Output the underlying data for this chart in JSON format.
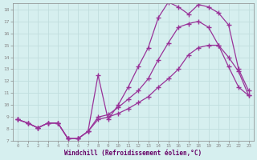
{
  "xlabel": "Windchill (Refroidissement éolien,°C)",
  "xlim": [
    0,
    23
  ],
  "ylim": [
    7,
    18.5
  ],
  "xticks": [
    0,
    1,
    2,
    3,
    4,
    5,
    6,
    7,
    8,
    9,
    10,
    11,
    12,
    13,
    14,
    15,
    16,
    17,
    18,
    19,
    20,
    21,
    22,
    23
  ],
  "yticks": [
    7,
    8,
    9,
    10,
    11,
    12,
    13,
    14,
    15,
    16,
    17,
    18
  ],
  "bg_color": "#d6efef",
  "grid_color": "#c0dede",
  "line_color": "#993399",
  "line1_x": [
    0,
    1,
    2,
    3,
    4,
    5,
    6,
    7,
    8,
    9,
    10,
    11,
    12,
    13,
    14,
    15,
    16,
    17,
    18,
    19,
    20,
    21,
    22,
    23
  ],
  "line1_y": [
    8.8,
    8.5,
    8.1,
    8.5,
    8.5,
    7.2,
    7.2,
    7.8,
    12.5,
    8.8,
    10.0,
    11.5,
    13.2,
    14.8,
    17.3,
    18.6,
    18.2,
    17.6,
    18.4,
    18.2,
    17.7,
    16.7,
    13.0,
    11.2
  ],
  "line2_x": [
    0,
    1,
    2,
    3,
    4,
    5,
    6,
    7,
    8,
    9,
    10,
    11,
    12,
    13,
    14,
    15,
    16,
    17,
    18,
    19,
    20,
    21,
    22,
    23
  ],
  "line2_y": [
    8.8,
    8.5,
    8.1,
    8.5,
    8.5,
    7.2,
    7.2,
    7.8,
    9.0,
    9.2,
    9.8,
    10.5,
    11.2,
    12.2,
    13.8,
    15.2,
    16.5,
    16.8,
    17.0,
    16.5,
    15.0,
    13.2,
    11.5,
    10.8
  ],
  "line3_x": [
    0,
    1,
    2,
    3,
    4,
    5,
    6,
    7,
    8,
    9,
    10,
    11,
    12,
    13,
    14,
    15,
    16,
    17,
    18,
    19,
    20,
    21,
    22,
    23
  ],
  "line3_y": [
    8.8,
    8.5,
    8.1,
    8.5,
    8.5,
    7.2,
    7.2,
    7.8,
    8.8,
    9.0,
    9.3,
    9.7,
    10.2,
    10.7,
    11.5,
    12.2,
    13.0,
    14.2,
    14.8,
    15.0,
    15.0,
    14.0,
    12.8,
    10.8
  ]
}
